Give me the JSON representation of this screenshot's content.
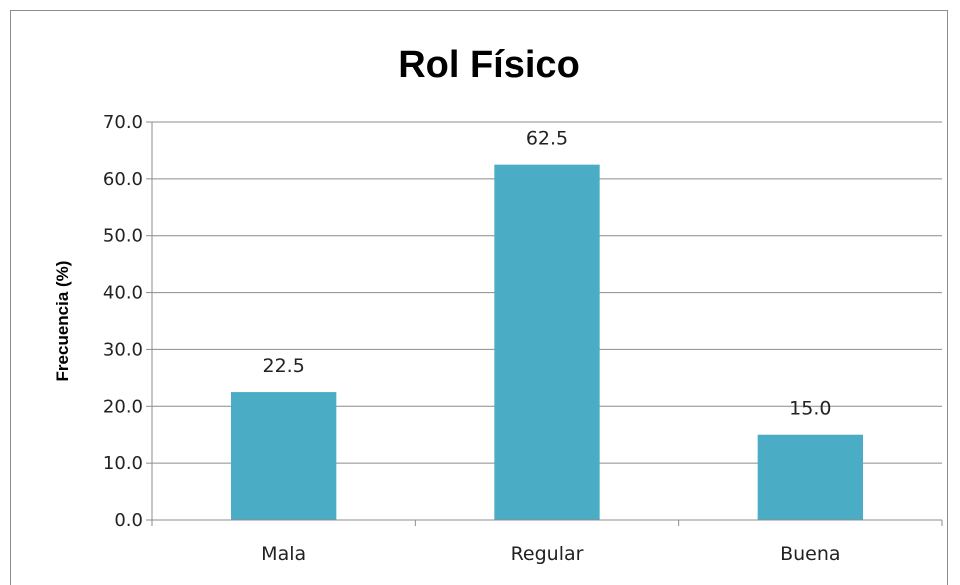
{
  "chart_data": {
    "type": "bar",
    "title": "Rol Físico",
    "xlabel": "",
    "ylabel": "Frecuencia (%)",
    "categories": [
      "Mala",
      "Regular",
      "Buena"
    ],
    "values": [
      22.5,
      62.5,
      15.0
    ],
    "value_labels": [
      "22.5",
      "62.5",
      "15.0"
    ],
    "ylim": [
      0,
      70
    ],
    "yticks": [
      "0.0",
      "10.0",
      "20.0",
      "30.0",
      "40.0",
      "50.0",
      "60.0",
      "70.0"
    ],
    "grid": true,
    "legend": "none",
    "bar_color": "#4bacc6",
    "grid_color": "#8c8c8c"
  }
}
